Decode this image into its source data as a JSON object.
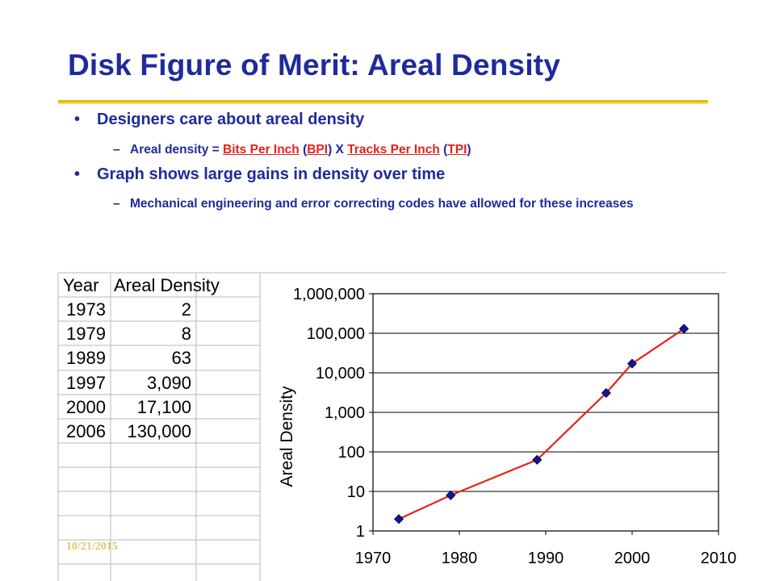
{
  "slide": {
    "title": "Disk Figure of Merit: Areal Density",
    "footer_date": "10/21/2015"
  },
  "bullets": {
    "b1_dot": "•",
    "b1_text": "Designers care about areal density",
    "b1_sub_dash": "–",
    "b1_sub_prefix": "Areal density = ",
    "b1_sub_link1": "Bits Per Inch",
    "b1_sub_paren1_open": " (",
    "b1_sub_link2": "BPI",
    "b1_sub_mid": ") X ",
    "b1_sub_link3": "Tracks Per Inch",
    "b1_sub_paren2_open": " (",
    "b1_sub_link4": "TPI",
    "b1_sub_paren2_close": ")",
    "b2_dot": "•",
    "b2_text": "Graph shows large gains in density over time",
    "b2_sub_dash": "–",
    "b2_sub_text": "Mechanical engineering and error correcting codes have allowed for these increases"
  },
  "table": {
    "headers": [
      "Year",
      "Areal Density"
    ],
    "rows": [
      [
        "1973",
        "2"
      ],
      [
        "1979",
        "8"
      ],
      [
        "1989",
        "63"
      ],
      [
        "1997",
        "3,090"
      ],
      [
        "2000",
        "17,100"
      ],
      [
        "2006",
        "130,000"
      ]
    ]
  },
  "colors": {
    "title": "#1f2a9c",
    "accent_rule": "#e6b800",
    "link": "#e4231c",
    "line": "#e4231c",
    "marker": "#13178f"
  },
  "chart_data": {
    "type": "line",
    "title": "",
    "xlabel": "",
    "ylabel": "Areal Density",
    "y_scale": "log",
    "xlim": [
      1970,
      2010
    ],
    "ylim": [
      1,
      1000000
    ],
    "x_ticks": [
      "1970",
      "1980",
      "1990",
      "2000",
      "2010"
    ],
    "y_ticks": [
      "1",
      "10",
      "100",
      "1,000",
      "10,000",
      "100,000",
      "1,000,000"
    ],
    "grid": "horizontal",
    "series": [
      {
        "x": [
          1973,
          1979,
          1989,
          1997,
          2000,
          2006
        ],
        "y": [
          2,
          8,
          63,
          3090,
          17100,
          130000
        ]
      }
    ]
  }
}
